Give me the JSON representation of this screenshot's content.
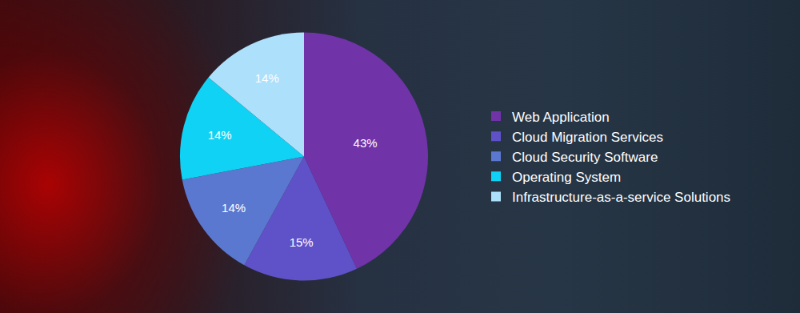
{
  "chart_data": {
    "type": "pie",
    "categories": [
      "Web Application",
      "Cloud Migration Services",
      "Cloud Security Software",
      "Operating System",
      "Infrastructure-as-a-service Solutions"
    ],
    "values": [
      43,
      15,
      14,
      14,
      14
    ],
    "value_labels": [
      "43%",
      "15%",
      "14%",
      "14%",
      "14%"
    ],
    "colors": [
      "#7033a8",
      "#5f52c8",
      "#5b78d0",
      "#10d2f4",
      "#ade0fb"
    ],
    "data_labels": true,
    "legend": "right"
  }
}
